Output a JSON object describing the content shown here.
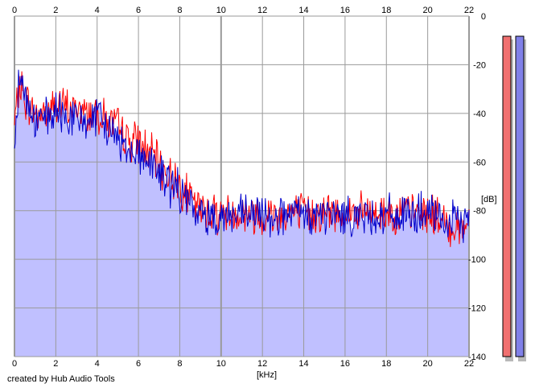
{
  "credit": "created by Hub Audio Tools",
  "colors": {
    "background": "#ffffff",
    "plot_background": "#ffffff",
    "fill": "#c0c0ff",
    "grid": "#9a9a9a",
    "series_red": "#ff0000",
    "series_blue": "#0000cc",
    "meter_left": "#f07070",
    "meter_right": "#8080e8"
  },
  "meters": [
    {
      "name": "left-channel-level",
      "color": "#f07070"
    },
    {
      "name": "right-channel-level",
      "color": "#8080e8"
    }
  ],
  "chart_data": {
    "type": "line",
    "xlabel": "[kHz]",
    "ylabel": "[dB]",
    "xlim": [
      0,
      22
    ],
    "ylim": [
      -140,
      0
    ],
    "x_ticks": [
      "0",
      "2",
      "4",
      "6",
      "8",
      "10",
      "12",
      "14",
      "16",
      "18",
      "20",
      "22"
    ],
    "y_ticks": [
      "0",
      "-20",
      "-40",
      "-60",
      "-80",
      "-100",
      "-120",
      "-140"
    ],
    "grid": true,
    "fill_under": true,
    "x": [
      0,
      0.25,
      0.5,
      0.75,
      1,
      1.5,
      2,
      2.5,
      3,
      3.5,
      4,
      4.5,
      5,
      5.5,
      6,
      6.5,
      7,
      7.5,
      8,
      8.5,
      9,
      10,
      11,
      12,
      13,
      14,
      15,
      16,
      17,
      18,
      19,
      20,
      20.5,
      21,
      21.5,
      22
    ],
    "series": [
      {
        "color": "#ff0000",
        "values": [
          -45,
          -28,
          -34,
          -38,
          -40,
          -40,
          -36,
          -38,
          -38,
          -40,
          -39,
          -43,
          -46,
          -51,
          -52,
          -56,
          -61,
          -66,
          -69,
          -75,
          -80,
          -81,
          -81,
          -82,
          -81,
          -81,
          -81,
          -81,
          -81,
          -81,
          -81,
          -81,
          -83,
          -87,
          -87,
          -85
        ]
      },
      {
        "color": "#0000cc",
        "values": [
          -48,
          -22,
          -32,
          -40,
          -43,
          -43,
          -40,
          -41,
          -43,
          -43,
          -42,
          -46,
          -50,
          -54,
          -56,
          -60,
          -64,
          -69,
          -72,
          -78,
          -82,
          -82,
          -82,
          -82,
          -82,
          -82,
          -82,
          -82,
          -82,
          -82,
          -82,
          -81,
          -84,
          -85,
          -85,
          -83
        ]
      }
    ]
  }
}
